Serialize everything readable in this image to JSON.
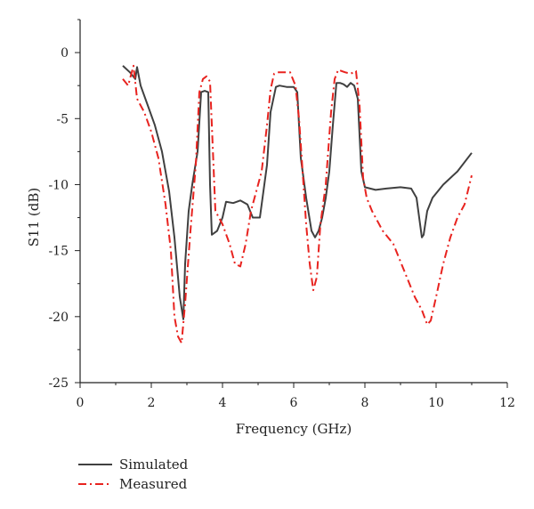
{
  "chart_data": {
    "type": "line",
    "xlabel": "Frequency (GHz)",
    "ylabel": "S11 (dB)",
    "xlim": [
      0,
      12
    ],
    "ylim": [
      -25,
      2.5
    ],
    "xticks": [
      "0",
      "2",
      "4",
      "6",
      "8",
      "10",
      "12"
    ],
    "yticks": [
      "0",
      "-5",
      "-10",
      "-15",
      "-20",
      "-25"
    ],
    "grid": false,
    "legend_position": "bottom-left",
    "series": [
      {
        "name": "Simulated",
        "color": "#404040",
        "style": "solid",
        "x": [
          1.2,
          1.4,
          1.55,
          1.6,
          1.7,
          1.9,
          2.1,
          2.3,
          2.5,
          2.65,
          2.8,
          2.9,
          2.95,
          3.05,
          3.15,
          3.3,
          3.4,
          3.5,
          3.6,
          3.65,
          3.7,
          3.85,
          4.0,
          4.1,
          4.3,
          4.5,
          4.7,
          4.85,
          4.95,
          5.05,
          5.15,
          5.25,
          5.35,
          5.5,
          5.6,
          5.8,
          6.0,
          6.1,
          6.2,
          6.35,
          6.5,
          6.6,
          6.7,
          6.8,
          6.9,
          7.0,
          7.1,
          7.2,
          7.3,
          7.4,
          7.5,
          7.6,
          7.7,
          7.8,
          7.9,
          8.0,
          8.3,
          8.6,
          9.0,
          9.3,
          9.45,
          9.55,
          9.6,
          9.65,
          9.75,
          9.9,
          10.2,
          10.6,
          11.0
        ],
        "y": [
          -1,
          -1.5,
          -2,
          -1.1,
          -2.5,
          -4.0,
          -5.5,
          -7.5,
          -10.5,
          -14.0,
          -18.5,
          -20.2,
          -16.0,
          -12.0,
          -10.0,
          -7.5,
          -3.0,
          -2.9,
          -3.0,
          -10.0,
          -13.8,
          -13.5,
          -12.5,
          -11.3,
          -11.4,
          -11.2,
          -11.5,
          -12.5,
          -12.5,
          -12.5,
          -10.5,
          -8.5,
          -4.5,
          -2.6,
          -2.5,
          -2.6,
          -2.6,
          -3.0,
          -8.0,
          -11.0,
          -13.5,
          -14.0,
          -13.5,
          -12.5,
          -11.0,
          -9.0,
          -5.5,
          -2.3,
          -2.3,
          -2.4,
          -2.6,
          -2.3,
          -2.5,
          -3.5,
          -9.0,
          -10.2,
          -10.4,
          -10.3,
          -10.2,
          -10.3,
          -11.0,
          -13.0,
          -14.0,
          -13.8,
          -12.0,
          -11.0,
          -10.0,
          -9.0,
          -7.6
        ]
      },
      {
        "name": "Measured",
        "color": "#e8231f",
        "style": "dashdot",
        "x": [
          1.2,
          1.35,
          1.5,
          1.6,
          1.8,
          2.0,
          2.2,
          2.4,
          2.55,
          2.65,
          2.75,
          2.85,
          2.95,
          3.1,
          3.25,
          3.35,
          3.45,
          3.55,
          3.65,
          3.8,
          4.0,
          4.2,
          4.35,
          4.5,
          4.65,
          4.8,
          4.95,
          5.1,
          5.25,
          5.35,
          5.45,
          5.55,
          5.7,
          5.9,
          6.05,
          6.15,
          6.25,
          6.35,
          6.45,
          6.55,
          6.65,
          6.75,
          6.9,
          7.05,
          7.15,
          7.25,
          7.35,
          7.45,
          7.6,
          7.75,
          7.85,
          7.95,
          8.05,
          8.2,
          8.5,
          8.8,
          9.1,
          9.4,
          9.6,
          9.75,
          9.85,
          10.0,
          10.2,
          10.4,
          10.6,
          10.8,
          11.0
        ],
        "y": [
          -2,
          -2.5,
          -1.0,
          -3.5,
          -4.5,
          -6.0,
          -8.0,
          -11.5,
          -15.0,
          -20.0,
          -21.5,
          -22.0,
          -19.0,
          -13.5,
          -8.5,
          -3.0,
          -2.0,
          -1.8,
          -2.2,
          -12.0,
          -13.0,
          -14.5,
          -16.0,
          -16.2,
          -14.5,
          -12.0,
          -10.5,
          -9.0,
          -5.5,
          -2.8,
          -1.6,
          -1.5,
          -1.5,
          -1.5,
          -2.5,
          -5.0,
          -9.0,
          -13.0,
          -16.0,
          -18.0,
          -17.0,
          -13.0,
          -10.0,
          -4.5,
          -2.0,
          -1.3,
          -1.4,
          -1.5,
          -1.6,
          -1.4,
          -4.0,
          -9.5,
          -11.0,
          -12.0,
          -13.5,
          -14.5,
          -16.5,
          -18.5,
          -19.5,
          -20.6,
          -20.3,
          -18.5,
          -16.0,
          -14.0,
          -12.5,
          -11.5,
          -9.3
        ]
      }
    ]
  }
}
